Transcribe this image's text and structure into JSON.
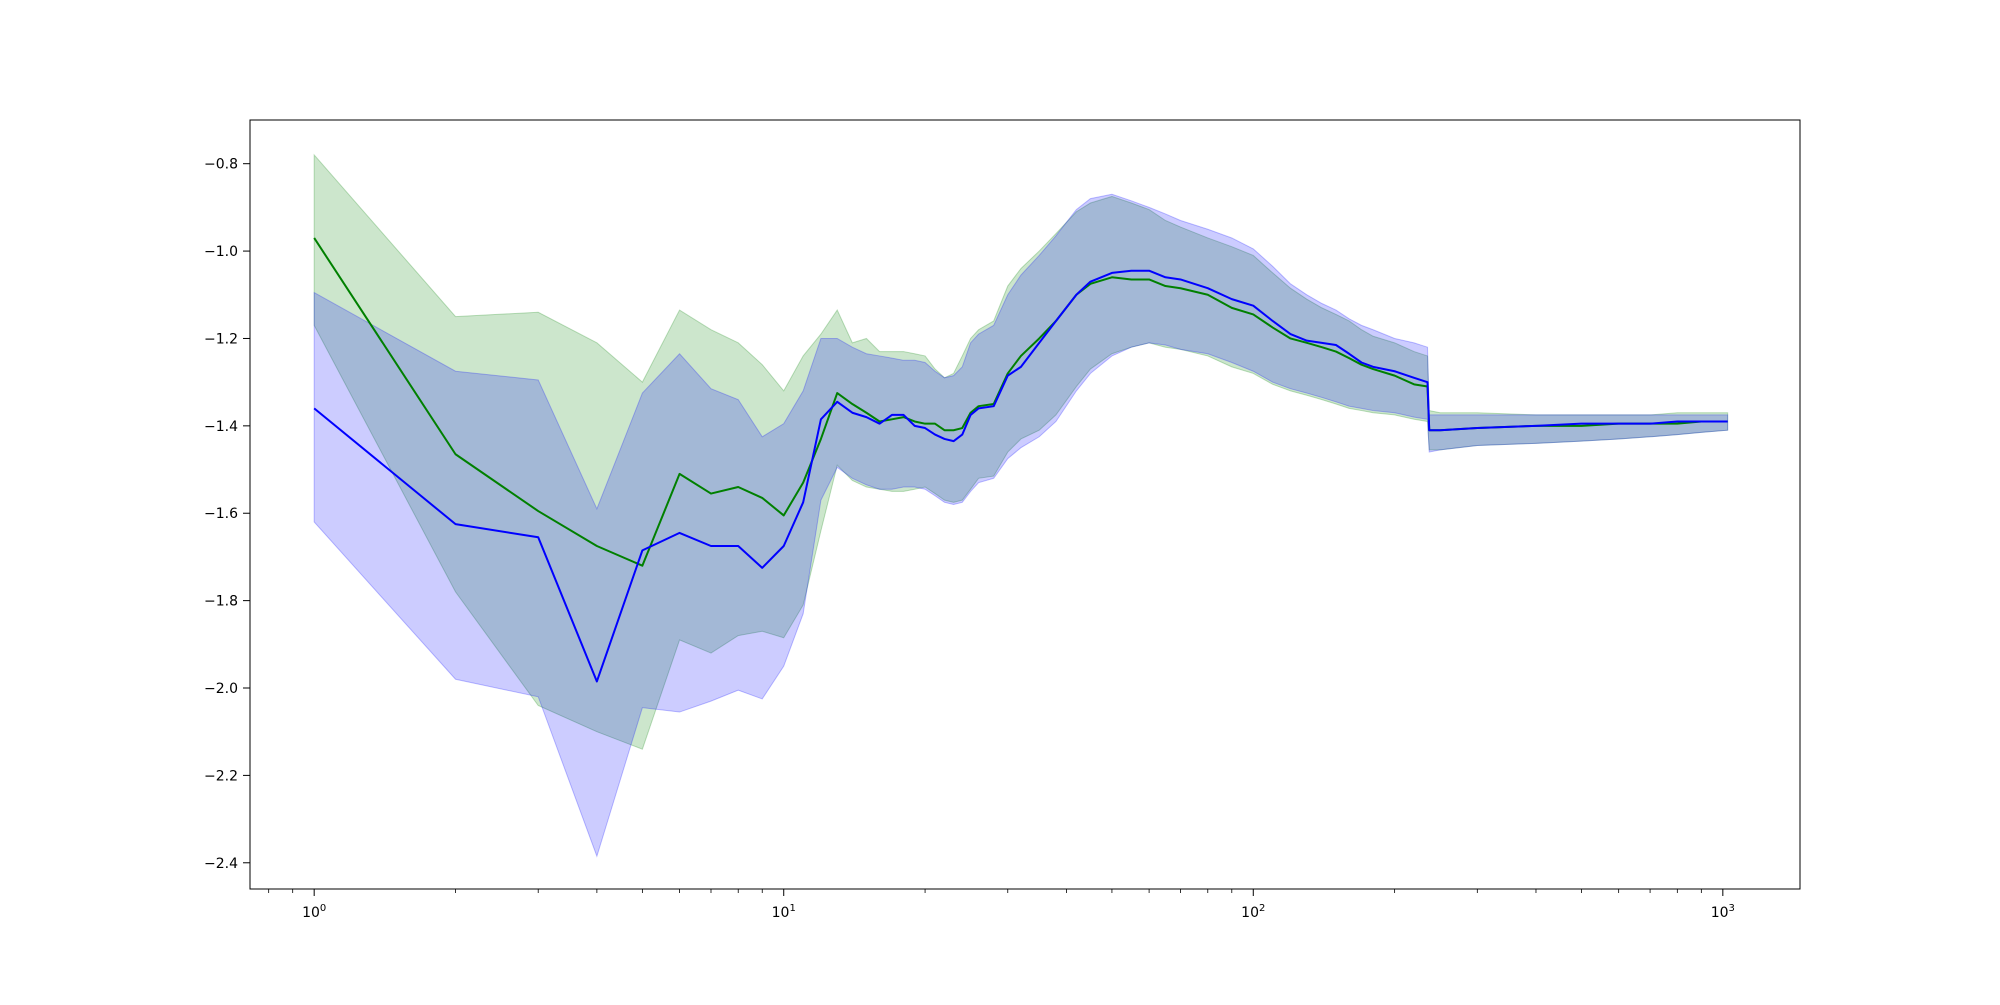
{
  "chart_data": {
    "type": "line",
    "title": "",
    "xlabel": "",
    "ylabel": "",
    "x_scale": "log",
    "xlim": [
      0.73,
      1460
    ],
    "ylim": [
      -2.46,
      -0.7
    ],
    "grid": false,
    "legend": "none",
    "x_ticks": [
      {
        "value": 1,
        "base": "10",
        "exp": "0"
      },
      {
        "value": 10,
        "base": "10",
        "exp": "1"
      },
      {
        "value": 100,
        "base": "10",
        "exp": "2"
      },
      {
        "value": 1000,
        "base": "10",
        "exp": "3"
      }
    ],
    "y_ticks": [
      {
        "value": -0.8,
        "label": "−0.8"
      },
      {
        "value": -1.0,
        "label": "−1.0"
      },
      {
        "value": -1.2,
        "label": "−1.2"
      },
      {
        "value": -1.4,
        "label": "−1.4"
      },
      {
        "value": -1.6,
        "label": "−1.6"
      },
      {
        "value": -1.8,
        "label": "−1.8"
      },
      {
        "value": -2.0,
        "label": "−2.0"
      },
      {
        "value": -2.2,
        "label": "−2.2"
      },
      {
        "value": -2.4,
        "label": "−2.4"
      }
    ],
    "series": [
      {
        "color": "#008000",
        "band_color": "#008000",
        "band_alpha": 0.2,
        "x": [
          1,
          2,
          3,
          4,
          5,
          6,
          7,
          8,
          9,
          10,
          11,
          12,
          13,
          14,
          15,
          16,
          17,
          18,
          19,
          20,
          21,
          22,
          23,
          24,
          25,
          26,
          28,
          30,
          32,
          35,
          38,
          42,
          45,
          50,
          55,
          60,
          65,
          70,
          80,
          90,
          100,
          110,
          120,
          130,
          140,
          150,
          160,
          170,
          180,
          200,
          220,
          235,
          237,
          250,
          300,
          400,
          500,
          600,
          700,
          800,
          900,
          1024
        ],
        "mean": [
          -0.97,
          -1.465,
          -1.595,
          -1.675,
          -1.72,
          -1.51,
          -1.555,
          -1.54,
          -1.565,
          -1.605,
          -1.53,
          -1.43,
          -1.325,
          -1.35,
          -1.37,
          -1.39,
          -1.385,
          -1.38,
          -1.39,
          -1.395,
          -1.395,
          -1.41,
          -1.41,
          -1.405,
          -1.37,
          -1.355,
          -1.35,
          -1.28,
          -1.24,
          -1.2,
          -1.16,
          -1.1,
          -1.075,
          -1.06,
          -1.065,
          -1.065,
          -1.08,
          -1.085,
          -1.1,
          -1.13,
          -1.145,
          -1.175,
          -1.2,
          -1.21,
          -1.22,
          -1.23,
          -1.245,
          -1.26,
          -1.27,
          -1.285,
          -1.305,
          -1.31,
          -1.41,
          -1.41,
          -1.405,
          -1.4,
          -1.4,
          -1.395,
          -1.395,
          -1.395,
          -1.39,
          -1.39
        ],
        "upper": [
          -0.78,
          -1.15,
          -1.14,
          -1.21,
          -1.3,
          -1.135,
          -1.18,
          -1.21,
          -1.26,
          -1.32,
          -1.24,
          -1.19,
          -1.135,
          -1.21,
          -1.2,
          -1.23,
          -1.23,
          -1.23,
          -1.235,
          -1.24,
          -1.27,
          -1.29,
          -1.28,
          -1.24,
          -1.2,
          -1.18,
          -1.16,
          -1.08,
          -1.04,
          -1.0,
          -0.96,
          -0.91,
          -0.89,
          -0.875,
          -0.89,
          -0.905,
          -0.93,
          -0.945,
          -0.97,
          -0.99,
          -1.01,
          -1.05,
          -1.085,
          -1.11,
          -1.13,
          -1.145,
          -1.16,
          -1.18,
          -1.195,
          -1.21,
          -1.23,
          -1.24,
          -1.365,
          -1.37,
          -1.37,
          -1.375,
          -1.375,
          -1.375,
          -1.375,
          -1.37,
          -1.37,
          -1.37
        ],
        "lower": [
          -1.17,
          -1.78,
          -2.04,
          -2.1,
          -2.14,
          -1.89,
          -1.92,
          -1.88,
          -1.87,
          -1.885,
          -1.81,
          -1.64,
          -1.49,
          -1.525,
          -1.54,
          -1.545,
          -1.55,
          -1.55,
          -1.545,
          -1.54,
          -1.555,
          -1.57,
          -1.575,
          -1.57,
          -1.545,
          -1.52,
          -1.515,
          -1.46,
          -1.43,
          -1.41,
          -1.375,
          -1.31,
          -1.27,
          -1.235,
          -1.22,
          -1.21,
          -1.22,
          -1.225,
          -1.24,
          -1.265,
          -1.28,
          -1.305,
          -1.32,
          -1.33,
          -1.34,
          -1.35,
          -1.36,
          -1.365,
          -1.37,
          -1.375,
          -1.385,
          -1.39,
          -1.455,
          -1.455,
          -1.445,
          -1.44,
          -1.435,
          -1.43,
          -1.425,
          -1.42,
          -1.415,
          -1.41
        ]
      },
      {
        "color": "#0000ff",
        "band_color": "#0000ff",
        "band_alpha": 0.2,
        "x": [
          1,
          2,
          3,
          4,
          5,
          6,
          7,
          8,
          9,
          10,
          11,
          12,
          13,
          14,
          15,
          16,
          17,
          18,
          19,
          20,
          21,
          22,
          23,
          24,
          25,
          26,
          28,
          30,
          32,
          35,
          38,
          42,
          45,
          50,
          55,
          60,
          65,
          70,
          80,
          90,
          100,
          110,
          120,
          130,
          140,
          150,
          160,
          170,
          180,
          200,
          220,
          235,
          237,
          250,
          300,
          400,
          500,
          600,
          700,
          800,
          900,
          1024
        ],
        "mean": [
          -1.36,
          -1.625,
          -1.655,
          -1.985,
          -1.685,
          -1.645,
          -1.675,
          -1.675,
          -1.725,
          -1.675,
          -1.575,
          -1.385,
          -1.345,
          -1.37,
          -1.38,
          -1.395,
          -1.375,
          -1.375,
          -1.4,
          -1.405,
          -1.42,
          -1.43,
          -1.435,
          -1.42,
          -1.375,
          -1.36,
          -1.355,
          -1.285,
          -1.265,
          -1.21,
          -1.16,
          -1.1,
          -1.07,
          -1.05,
          -1.045,
          -1.045,
          -1.06,
          -1.065,
          -1.085,
          -1.11,
          -1.125,
          -1.16,
          -1.19,
          -1.205,
          -1.21,
          -1.215,
          -1.235,
          -1.255,
          -1.265,
          -1.275,
          -1.29,
          -1.3,
          -1.41,
          -1.41,
          -1.405,
          -1.4,
          -1.395,
          -1.395,
          -1.395,
          -1.39,
          -1.39,
          -1.39
        ],
        "upper": [
          -1.095,
          -1.275,
          -1.295,
          -1.59,
          -1.325,
          -1.235,
          -1.315,
          -1.34,
          -1.425,
          -1.395,
          -1.32,
          -1.2,
          -1.2,
          -1.22,
          -1.235,
          -1.24,
          -1.245,
          -1.25,
          -1.25,
          -1.255,
          -1.275,
          -1.29,
          -1.285,
          -1.265,
          -1.21,
          -1.19,
          -1.17,
          -1.1,
          -1.055,
          -1.01,
          -0.965,
          -0.905,
          -0.88,
          -0.87,
          -0.885,
          -0.9,
          -0.915,
          -0.93,
          -0.95,
          -0.97,
          -0.995,
          -1.035,
          -1.075,
          -1.1,
          -1.12,
          -1.135,
          -1.155,
          -1.17,
          -1.18,
          -1.2,
          -1.21,
          -1.22,
          -1.375,
          -1.375,
          -1.375,
          -1.375,
          -1.375,
          -1.375,
          -1.375,
          -1.375,
          -1.375,
          -1.375
        ],
        "lower": [
          -1.62,
          -1.98,
          -2.02,
          -2.385,
          -2.045,
          -2.055,
          -2.03,
          -2.005,
          -2.025,
          -1.95,
          -1.83,
          -1.57,
          -1.495,
          -1.52,
          -1.535,
          -1.545,
          -1.545,
          -1.54,
          -1.54,
          -1.545,
          -1.56,
          -1.575,
          -1.58,
          -1.575,
          -1.55,
          -1.53,
          -1.52,
          -1.475,
          -1.45,
          -1.425,
          -1.39,
          -1.32,
          -1.28,
          -1.24,
          -1.22,
          -1.21,
          -1.215,
          -1.225,
          -1.235,
          -1.255,
          -1.275,
          -1.3,
          -1.315,
          -1.325,
          -1.335,
          -1.345,
          -1.355,
          -1.36,
          -1.365,
          -1.37,
          -1.38,
          -1.385,
          -1.46,
          -1.455,
          -1.445,
          -1.44,
          -1.435,
          -1.43,
          -1.425,
          -1.42,
          -1.415,
          -1.41
        ]
      }
    ]
  }
}
